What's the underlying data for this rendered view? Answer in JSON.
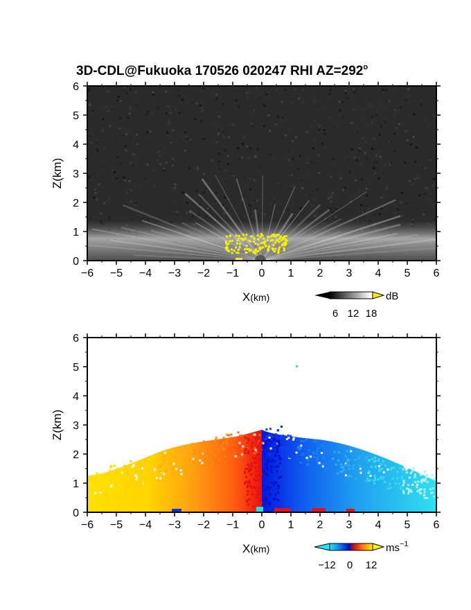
{
  "title_main": "3D-CDL@Fukuoka 170526 020247 RHI AZ=292",
  "title_deg": "o",
  "panels": [
    {
      "name": "backscatter",
      "xlabel_main": "X",
      "xlabel_unit": "(km)",
      "ylabel": "Z(km)",
      "colorbar": {
        "ticks": [
          "6",
          "12",
          "18"
        ],
        "unit": "dB",
        "unit_sup": ""
      }
    },
    {
      "name": "velocity",
      "xlabel_main": "X",
      "xlabel_unit": "(km)",
      "ylabel": "Z(km)",
      "colorbar": {
        "ticks": [
          "−12",
          "0",
          "12"
        ],
        "unit": "ms",
        "unit_sup": "−1"
      }
    }
  ],
  "chart_data": [
    {
      "type": "heatmap",
      "title": "3D-CDL@Fukuoka 170526 020247 RHI AZ=292°",
      "xlabel": "X(km)",
      "ylabel": "Z(km)",
      "xlim": [
        -6,
        6
      ],
      "ylim": [
        0,
        6
      ],
      "xticks": [
        -6,
        -5,
        -4,
        -3,
        -2,
        -1,
        0,
        1,
        2,
        3,
        4,
        5,
        6
      ],
      "yticks": [
        0,
        1,
        2,
        3,
        4,
        5,
        6
      ],
      "colorbar": {
        "label": "dB",
        "ticks": [
          6,
          12,
          18
        ],
        "colormap": "grayscale",
        "saturated_color": "#f5f000"
      }
    },
    {
      "type": "heatmap",
      "xlabel": "X(km)",
      "ylabel": "Z(km)",
      "xlim": [
        -6,
        6
      ],
      "ylim": [
        0,
        6
      ],
      "xticks": [
        -6,
        -5,
        -4,
        -3,
        -2,
        -1,
        0,
        1,
        2,
        3,
        4,
        5,
        6
      ],
      "yticks": [
        0,
        1,
        2,
        3,
        4,
        5,
        6
      ],
      "colorbar": {
        "label": "ms⁻¹",
        "ticks": [
          -12,
          0,
          12
        ],
        "colormap": "cyan-blue-red-yellow"
      },
      "description_values": {
        "negative_x_side": "positive velocity (red-orange-yellow)",
        "positive_x_side": "negative velocity (blue-cyan)"
      }
    }
  ],
  "colors": {
    "bg_dark": "#2a2a2a",
    "yellow": "#f5f000",
    "cyan": "#22e0f0",
    "blue": "#0022ee",
    "red": "#ee1010",
    "orange": "#ff8a10"
  }
}
